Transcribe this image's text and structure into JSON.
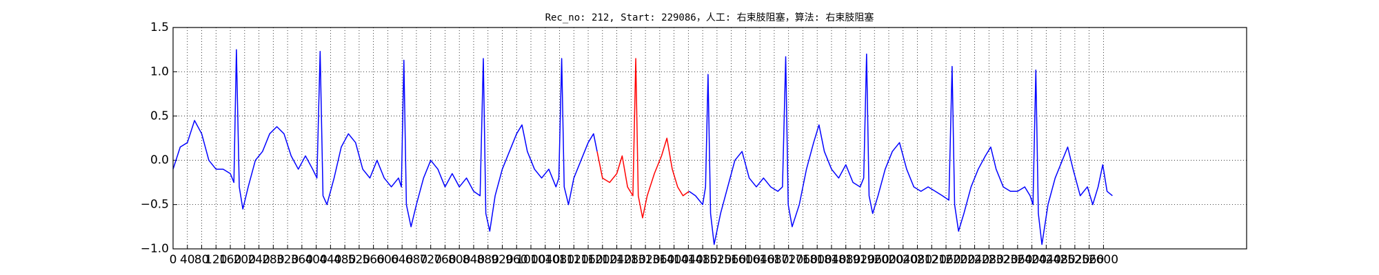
{
  "chart_data": {
    "type": "line",
    "title": "Rec_no: 212, Start: 229086，人工: 右束肢阻塞，算法: 右束肢阻塞",
    "xlim": [
      0,
      3000
    ],
    "xticks": [
      0,
      40,
      80,
      120,
      160,
      200,
      240,
      280,
      320,
      360,
      400,
      440,
      480,
      520,
      560,
      600,
      640,
      680,
      720,
      760,
      800,
      840,
      880,
      920,
      960,
      1000,
      1040,
      1080,
      1120,
      1160,
      1200,
      1240,
      1280,
      1320,
      1360,
      1400,
      1440,
      1480,
      1520,
      1560,
      1600,
      1640,
      1680,
      1720,
      1760,
      1800,
      1840,
      1880,
      1920,
      1960,
      2000,
      2040,
      2080,
      2120,
      2160,
      2200,
      2240,
      2280,
      2320,
      2360,
      2400,
      2440,
      2480,
      2520,
      2560,
      2600
    ],
    "ylim": [
      -1,
      1.5
    ],
    "yticks": [
      {
        "value": -1,
        "label": "−1.0"
      },
      {
        "value": -0.5,
        "label": "−0.5"
      },
      {
        "value": 0,
        "label": "0.0"
      },
      {
        "value": 0.5,
        "label": "0.5"
      },
      {
        "value": 1,
        "label": "1.0"
      },
      {
        "value": 1.5,
        "label": "1.5"
      }
    ],
    "grid": true,
    "series": [
      {
        "color": "#0000ff",
        "x": [
          0,
          20,
          40,
          60,
          80,
          100,
          120,
          140,
          160,
          170,
          177,
          185,
          195,
          210,
          230,
          250,
          270,
          290,
          310,
          330,
          350,
          370,
          390,
          402,
          411,
          419,
          430,
          450,
          470,
          490,
          510,
          530,
          550,
          570,
          590,
          610,
          630,
          638,
          645,
          652,
          665,
          680,
          700,
          720,
          740,
          760,
          780,
          800,
          820,
          840,
          858,
          867,
          874,
          885,
          900,
          920,
          940,
          960,
          975,
          990,
          1010,
          1030,
          1050,
          1070,
          1078,
          1086,
          1093,
          1105,
          1120,
          1140,
          1160,
          1175,
          1185
        ],
        "values": [
          -0.1,
          0.15,
          0.2,
          0.45,
          0.3,
          0.0,
          -0.1,
          -0.1,
          -0.15,
          -0.25,
          1.25,
          -0.3,
          -0.55,
          -0.3,
          0.0,
          0.1,
          0.3,
          0.38,
          0.3,
          0.05,
          -0.1,
          0.05,
          -0.1,
          -0.2,
          1.23,
          -0.4,
          -0.5,
          -0.2,
          0.15,
          0.3,
          0.2,
          -0.1,
          -0.2,
          0.0,
          -0.2,
          -0.3,
          -0.2,
          -0.3,
          1.13,
          -0.5,
          -0.75,
          -0.5,
          -0.2,
          0.0,
          -0.1,
          -0.3,
          -0.15,
          -0.3,
          -0.2,
          -0.35,
          -0.4,
          1.15,
          -0.6,
          -0.8,
          -0.4,
          -0.1,
          0.1,
          0.3,
          0.4,
          0.1,
          -0.1,
          -0.2,
          -0.1,
          -0.3,
          -0.2,
          1.15,
          -0.3,
          -0.5,
          -0.2,
          0.0,
          0.2,
          0.3,
          0.1
        ]
      },
      {
        "color": "#ff0000",
        "x": [
          1185,
          1200,
          1220,
          1240,
          1255,
          1270,
          1285,
          1293,
          1300,
          1312,
          1325,
          1345,
          1365,
          1380,
          1395,
          1410,
          1425,
          1442
        ],
        "values": [
          0.1,
          -0.2,
          -0.25,
          -0.15,
          0.05,
          -0.3,
          -0.4,
          1.15,
          -0.4,
          -0.65,
          -0.4,
          -0.15,
          0.05,
          0.25,
          -0.1,
          -0.3,
          -0.4,
          -0.35
        ]
      },
      {
        "color": "#0000ff",
        "x": [
          1442,
          1460,
          1480,
          1488,
          1495,
          1502,
          1512,
          1530,
          1550,
          1570,
          1590,
          1610,
          1630,
          1650,
          1670,
          1690,
          1703,
          1712,
          1719,
          1730,
          1750,
          1770,
          1790,
          1805,
          1820,
          1840,
          1860,
          1880,
          1900,
          1920,
          1930,
          1938,
          1945,
          1955,
          1970,
          1990,
          2010,
          2030,
          2050,
          2070,
          2090,
          2110,
          2130,
          2150,
          2168,
          2177,
          2184,
          2195,
          2210,
          2230,
          2250,
          2270,
          2285,
          2300,
          2320,
          2340,
          2360,
          2380,
          2395,
          2403,
          2411,
          2418,
          2428,
          2445,
          2465,
          2485,
          2500,
          2515,
          2535,
          2555,
          2570,
          2585,
          2598,
          2610,
          2625
        ],
        "values": [
          -0.35,
          -0.4,
          -0.5,
          -0.3,
          0.97,
          -0.6,
          -0.95,
          -0.6,
          -0.3,
          0.0,
          0.1,
          -0.2,
          -0.3,
          -0.2,
          -0.3,
          -0.35,
          -0.3,
          1.17,
          -0.5,
          -0.75,
          -0.5,
          -0.1,
          0.2,
          0.4,
          0.1,
          -0.1,
          -0.2,
          -0.05,
          -0.25,
          -0.3,
          -0.2,
          1.2,
          -0.4,
          -0.6,
          -0.4,
          -0.1,
          0.1,
          0.2,
          -0.1,
          -0.3,
          -0.35,
          -0.3,
          -0.35,
          -0.4,
          -0.45,
          1.06,
          -0.5,
          -0.8,
          -0.6,
          -0.3,
          -0.1,
          0.05,
          0.15,
          -0.1,
          -0.3,
          -0.35,
          -0.35,
          -0.3,
          -0.4,
          -0.5,
          1.02,
          -0.6,
          -0.95,
          -0.5,
          -0.2,
          0.0,
          0.15,
          -0.1,
          -0.4,
          -0.3,
          -0.5,
          -0.3,
          -0.05,
          -0.35,
          -0.4
        ]
      }
    ]
  }
}
